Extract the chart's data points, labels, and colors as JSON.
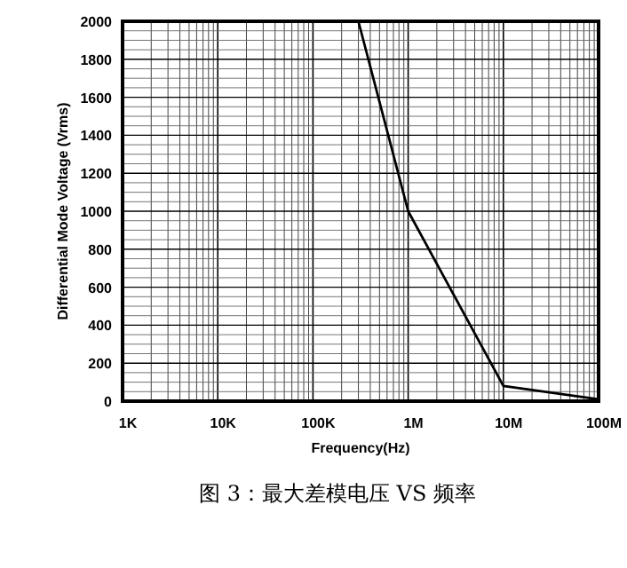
{
  "chart_data": {
    "type": "line",
    "xlabel": "Frequency(Hz)",
    "ylabel": "Differential Mode Voltage (Vrms)",
    "x": [
      1000,
      300000,
      1000000,
      10000000,
      100000000
    ],
    "series": [
      {
        "color": "#000000",
        "values": [
          2000,
          2000,
          1000,
          80,
          10
        ]
      }
    ],
    "log": "x",
    "xlim": [
      1000,
      100000000
    ],
    "ylim": [
      0,
      2000
    ],
    "xticks": [
      {
        "value": 1000,
        "label": "1K"
      },
      {
        "value": 10000,
        "label": "10K"
      },
      {
        "value": 100000,
        "label": "100K"
      },
      {
        "value": 1000000,
        "label": "1M"
      },
      {
        "value": 10000000,
        "label": "10M"
      },
      {
        "value": 100000000,
        "label": "100M"
      }
    ],
    "yticks": [
      0,
      200,
      400,
      600,
      800,
      1000,
      1200,
      1400,
      1600,
      1800,
      2000
    ],
    "grid": true,
    "marker": "none",
    "line_style": "solid",
    "annotations": [
      "图 3：最大差模电压 VS 频率"
    ]
  }
}
